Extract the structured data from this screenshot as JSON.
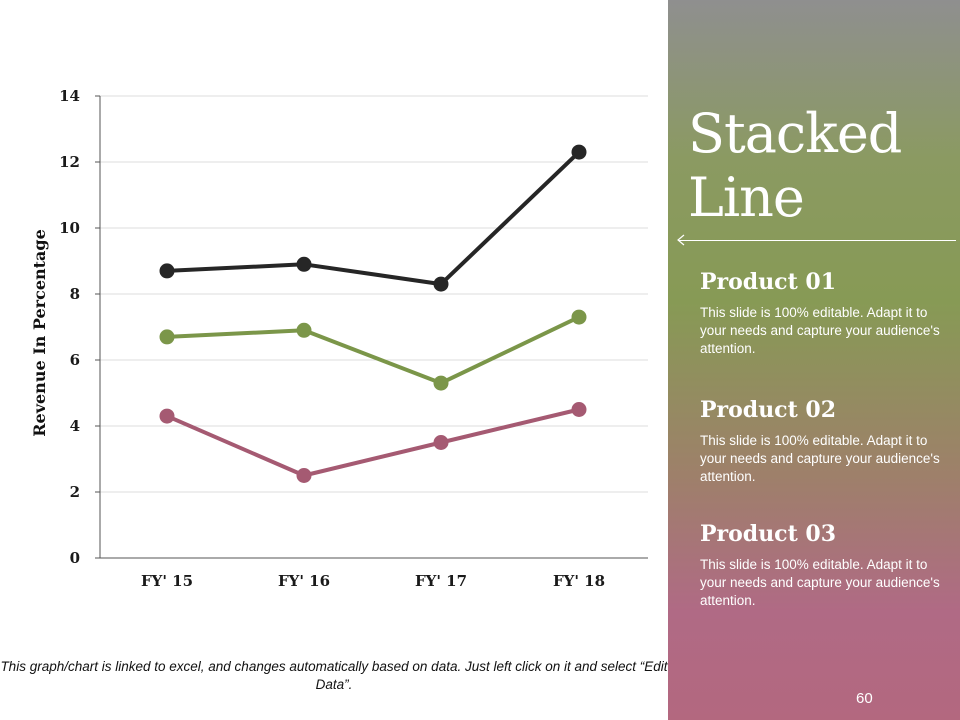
{
  "chart_data": {
    "type": "line",
    "categories": [
      "FY' 15",
      "FY' 16",
      "FY' 17",
      "FY' 18"
    ],
    "series": [
      {
        "values": [
          4.3,
          2.5,
          3.5,
          4.5
        ],
        "color": "#a55a72"
      },
      {
        "values": [
          6.7,
          6.9,
          5.3,
          7.3
        ],
        "color": "#7b9649"
      },
      {
        "values": [
          8.7,
          8.9,
          8.3,
          12.3
        ],
        "color": "#262626"
      }
    ],
    "xlabel": "",
    "ylabel": "Revenue In Percentage",
    "ylim": [
      0,
      14
    ],
    "yticks": [
      0,
      2,
      4,
      6,
      8,
      10,
      12,
      14
    ],
    "grid": true,
    "legend": "none"
  },
  "footnote": "This graph/chart is linked to excel, and changes automatically based on data. Just left click on it and select “Edit Data”.",
  "panel": {
    "title_line1": "Stacked",
    "title_line2": "Line",
    "arrow_icon": "arrow-left-icon",
    "products": [
      {
        "title": "Product 01",
        "description": "This slide is 100% editable. Adapt it to your needs and capture your audience's attention."
      },
      {
        "title": "Product 02",
        "description": "This slide is 100% editable. Adapt it to your needs and capture your audience's attention."
      },
      {
        "title": "Product 03",
        "description": "This slide is 100% editable. Adapt it to your needs and capture your audience's attention."
      }
    ],
    "page_number": "60"
  },
  "colors": {
    "panel_top": "#8f8f8f",
    "panel_mid": "#879a55",
    "panel_bottom": "#b3687f",
    "gridline": "#dddddd"
  }
}
